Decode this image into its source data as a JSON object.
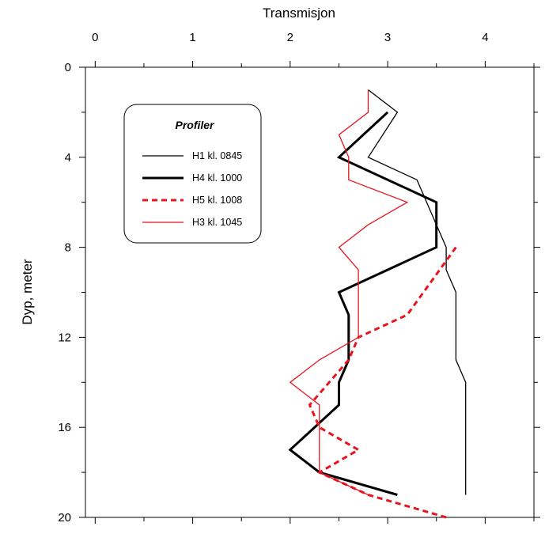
{
  "chart_data": {
    "type": "line",
    "title": "",
    "xlabel": "Transmisjon",
    "ylabel": "Dyp, meter",
    "xlim": [
      -0.1,
      4.5
    ],
    "ylim": [
      20,
      0
    ],
    "x_axis_position": "top",
    "y_axis_inverted": true,
    "grid": false,
    "x_ticks": [
      0,
      1,
      2,
      3,
      4
    ],
    "y_ticks": [
      0,
      4,
      8,
      12,
      16,
      20
    ],
    "legend": {
      "title": "Profiler",
      "placement": "top-left"
    },
    "series": [
      {
        "name": "H1 kl. 0845",
        "color": "#000000",
        "style": "solid-thin",
        "points": [
          {
            "x": 2.8,
            "y": 1
          },
          {
            "x": 3.1,
            "y": 2
          },
          {
            "x": 2.8,
            "y": 4
          },
          {
            "x": 3.3,
            "y": 5
          },
          {
            "x": 3.4,
            "y": 6
          },
          {
            "x": 3.6,
            "y": 8
          },
          {
            "x": 3.6,
            "y": 9
          },
          {
            "x": 3.7,
            "y": 10
          },
          {
            "x": 3.7,
            "y": 13
          },
          {
            "x": 3.8,
            "y": 14
          },
          {
            "x": 3.8,
            "y": 19
          }
        ]
      },
      {
        "name": "H4 kl. 1000",
        "color": "#000000",
        "style": "solid-thick",
        "points": [
          {
            "x": 3.0,
            "y": 2
          },
          {
            "x": 2.5,
            "y": 4
          },
          {
            "x": 3.5,
            "y": 6
          },
          {
            "x": 3.5,
            "y": 8
          },
          {
            "x": 2.5,
            "y": 10
          },
          {
            "x": 2.6,
            "y": 11
          },
          {
            "x": 2.6,
            "y": 13
          },
          {
            "x": 2.5,
            "y": 14
          },
          {
            "x": 2.5,
            "y": 15
          },
          {
            "x": 2.0,
            "y": 17
          },
          {
            "x": 2.3,
            "y": 18
          },
          {
            "x": 3.1,
            "y": 19
          }
        ]
      },
      {
        "name": "H5 kl. 1008",
        "color": "#e8141e",
        "style": "dashed",
        "points": [
          {
            "x": 3.7,
            "y": 8
          },
          {
            "x": 3.2,
            "y": 11
          },
          {
            "x": 2.7,
            "y": 12
          },
          {
            "x": 2.6,
            "y": 13
          },
          {
            "x": 2.2,
            "y": 15
          },
          {
            "x": 2.3,
            "y": 16
          },
          {
            "x": 2.7,
            "y": 17
          },
          {
            "x": 2.3,
            "y": 18
          },
          {
            "x": 2.8,
            "y": 19
          },
          {
            "x": 3.6,
            "y": 20
          }
        ]
      },
      {
        "name": "H3 kl. 1045",
        "color": "#e8141e",
        "style": "solid-thin",
        "points": [
          {
            "x": 2.8,
            "y": 1
          },
          {
            "x": 2.8,
            "y": 2
          },
          {
            "x": 2.5,
            "y": 3
          },
          {
            "x": 2.6,
            "y": 4
          },
          {
            "x": 2.6,
            "y": 5
          },
          {
            "x": 3.2,
            "y": 6
          },
          {
            "x": 2.8,
            "y": 7
          },
          {
            "x": 2.5,
            "y": 8
          },
          {
            "x": 2.7,
            "y": 9
          },
          {
            "x": 2.7,
            "y": 12
          },
          {
            "x": 2.3,
            "y": 13
          },
          {
            "x": 2.0,
            "y": 14
          },
          {
            "x": 2.3,
            "y": 15
          },
          {
            "x": 2.3,
            "y": 18
          },
          {
            "x": 2.8,
            "y": 19
          }
        ]
      }
    ]
  }
}
